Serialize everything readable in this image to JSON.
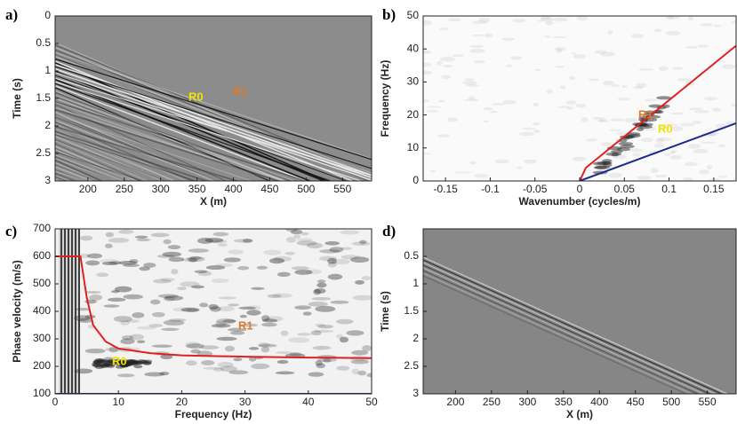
{
  "chart_data": [
    {
      "type": "heatmap",
      "panel_label": "a)",
      "xlabel": "X (m)",
      "ylabel": "Time (s)",
      "xlim": [
        155,
        590
      ],
      "xticks": [
        200,
        250,
        300,
        350,
        400,
        450,
        500,
        550
      ],
      "ylim": [
        0,
        3
      ],
      "yticks": [
        0,
        0.5,
        1,
        1.5,
        2,
        2.5,
        3
      ],
      "y_reversed": true,
      "annotations": [
        {
          "text": "R0",
          "color": "#f2e200"
        },
        {
          "text": "R1",
          "color": "#e07a2a"
        }
      ]
    },
    {
      "type": "fk",
      "panel_label": "b)",
      "xlabel": "Wavenumber (cycles/m)",
      "ylabel": "Frequency (Hz)",
      "xlim": [
        -0.175,
        0.175
      ],
      "xticks": [
        -0.15,
        -0.1,
        -0.05,
        0,
        0.05,
        0.1,
        0.15
      ],
      "ylim": [
        0,
        50
      ],
      "yticks": [
        0,
        10,
        20,
        30,
        40,
        50
      ],
      "series": [
        {
          "color": "#e02020",
          "x": [
            0,
            0.007,
            0.175
          ],
          "values": [
            0,
            4,
            41
          ]
        },
        {
          "color": "#1c2a8c",
          "x": [
            0,
            0.175
          ],
          "values": [
            0,
            17.5
          ]
        }
      ],
      "annotations": [
        {
          "text": "R1",
          "color": "#e07a2a"
        },
        {
          "text": "R0",
          "color": "#f2e200"
        }
      ]
    },
    {
      "type": "dispersion",
      "panel_label": "c)",
      "xlabel": "Frequency (Hz)",
      "ylabel": "Phase velocity (m/s)",
      "xlim": [
        0,
        50
      ],
      "xticks": [
        0,
        10,
        20,
        30,
        40,
        50
      ],
      "ylim": [
        100,
        700
      ],
      "yticks": [
        100,
        200,
        300,
        400,
        500,
        600,
        700
      ],
      "series": [
        {
          "color": "#e02020",
          "x": [
            0,
            4,
            5,
            6,
            8,
            10,
            15,
            20,
            30,
            40,
            50
          ],
          "values": [
            600,
            600,
            450,
            350,
            290,
            265,
            248,
            240,
            235,
            232,
            230
          ]
        },
        {
          "color": "#1c2a8c",
          "x": [
            0,
            50
          ],
          "values": [
            100,
            100
          ]
        }
      ],
      "annotations": [
        {
          "text": "R1",
          "color": "#e07a2a"
        },
        {
          "text": "R0",
          "color": "#f2e200"
        }
      ]
    },
    {
      "type": "heatmap-clean",
      "panel_label": "d)",
      "xlabel": "X (m)",
      "ylabel": "Time (s)",
      "xlim": [
        155,
        590
      ],
      "xticks": [
        200,
        250,
        300,
        350,
        400,
        450,
        500,
        550
      ],
      "ylim": [
        0,
        3
      ],
      "yticks": [
        0.5,
        1,
        1.5,
        2,
        2.5,
        3
      ],
      "y_reversed": true
    }
  ]
}
